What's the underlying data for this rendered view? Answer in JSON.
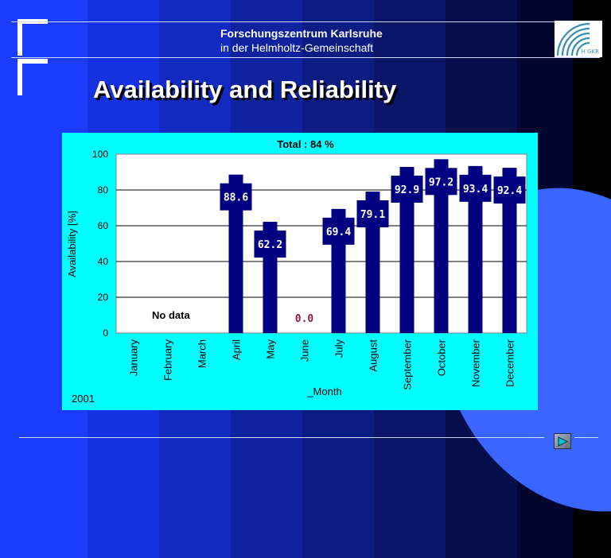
{
  "header": {
    "org_line1": "Forschungszentrum Karlsruhe",
    "org_line2": "in der Helmholtz-Gemeinschaft",
    "logo_text": "H GKR"
  },
  "slide": {
    "title": "Availability and Reliability"
  },
  "chart_data": {
    "type": "bar",
    "title": "Total  :  84  %",
    "ylabel": "Availability [%]",
    "xlabel": "_Month",
    "year_label": "2001",
    "no_data_label": "No  data",
    "ylim": [
      0,
      100
    ],
    "yticks": [
      0,
      20,
      40,
      60,
      80,
      100
    ],
    "grid": true,
    "categories": [
      "January",
      "February",
      "March",
      "April",
      "May",
      "June",
      "July",
      "August",
      "September",
      "October",
      "November",
      "December"
    ],
    "values": [
      null,
      null,
      null,
      88.6,
      62.2,
      0.0,
      69.4,
      79.1,
      92.9,
      97.2,
      93.4,
      92.4
    ],
    "value_labels": [
      "",
      "",
      "",
      "88.6",
      "62.2",
      "0.0",
      "69.4",
      "79.1",
      "92.9",
      "97.2",
      "93.4",
      "92.4"
    ],
    "bar_color": "#000080",
    "label_box_color": "#000080",
    "zero_label_color": "#8b1a4a",
    "plot_background": "#ffffff",
    "background": "#00ffff"
  },
  "nav": {
    "next_icon": "play-arrow-icon",
    "colors": {
      "arrow": "#00c8d8"
    }
  }
}
